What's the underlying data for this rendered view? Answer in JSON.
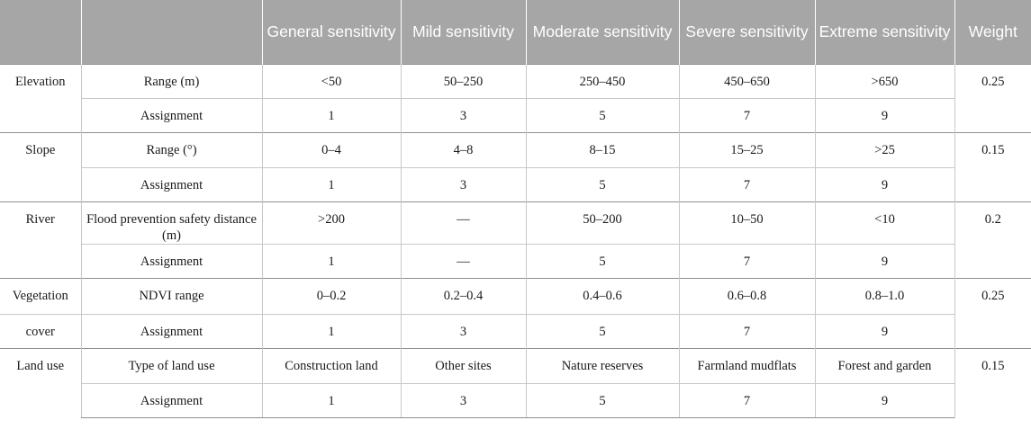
{
  "headers": [
    "",
    "",
    "General sensitivity",
    "Mild sensitivity",
    "Moderate sensitivity",
    "Severe sensitivity",
    "Extreme sensitivity",
    "Weight"
  ],
  "groups": [
    {
      "factor": "Elevation",
      "weight": "0.25",
      "rows": [
        {
          "indicator": "Range (m)",
          "values": [
            "<50",
            "50–250",
            "250–450",
            "450–650",
            ">650"
          ]
        },
        {
          "indicator": "Assignment",
          "values": [
            "1",
            "3",
            "5",
            "7",
            "9"
          ]
        }
      ]
    },
    {
      "factor": "Slope",
      "weight": "0.15",
      "rows": [
        {
          "indicator": "Range (°)",
          "values": [
            "0–4",
            "4–8",
            "8–15",
            "15–25",
            ">25"
          ]
        },
        {
          "indicator": "Assignment",
          "values": [
            "1",
            "3",
            "5",
            "7",
            "9"
          ]
        }
      ]
    },
    {
      "factor": "River",
      "weight": "0.2",
      "rows": [
        {
          "indicator": "Flood prevention safety distance (m)",
          "values": [
            ">200",
            "—",
            "50–200",
            "10–50",
            "<10"
          ]
        },
        {
          "indicator": "Assignment",
          "values": [
            "1",
            "—",
            "5",
            "7",
            "9"
          ]
        }
      ]
    },
    {
      "factor_line1": "Vegetation",
      "factor_line2": "cover",
      "weight": "0.25",
      "rows": [
        {
          "indicator": "NDVI range",
          "values": [
            "0–0.2",
            "0.2–0.4",
            "0.4–0.6",
            "0.6–0.8",
            "0.8–1.0"
          ]
        },
        {
          "indicator": "Assignment",
          "values": [
            "1",
            "3",
            "5",
            "7",
            "9"
          ]
        }
      ]
    },
    {
      "factor": "Land use",
      "weight": "0.15",
      "rows": [
        {
          "indicator": "Type of land use",
          "values": [
            "Construction land",
            "Other sites",
            "Nature reserves",
            "Farmland mudflats",
            "Forest and garden"
          ]
        },
        {
          "indicator": "Assignment",
          "values": [
            "1",
            "3",
            "5",
            "7",
            "9"
          ]
        }
      ]
    }
  ]
}
